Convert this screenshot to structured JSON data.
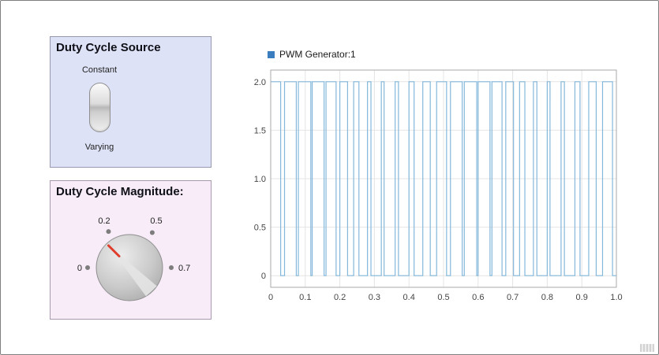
{
  "source_panel": {
    "title": "Duty Cycle Source",
    "switch": {
      "options": [
        "Constant",
        "Varying"
      ],
      "selected": "Varying"
    }
  },
  "magnitude_panel": {
    "title": "Duty Cycle Magnitude:",
    "knob": {
      "labels": [
        "0",
        "0.2",
        "0.5",
        "0.7"
      ],
      "pointer_angle_deg": 128
    }
  },
  "chart_data": {
    "type": "line",
    "title": "",
    "legend": [
      {
        "label": "PWM Generator:1",
        "color": "#3a7ebf"
      }
    ],
    "series_color": "#84b8db",
    "grid": true,
    "xlim": [
      0,
      1
    ],
    "ylim": [
      -0.12,
      2.12
    ],
    "x_tick_values": [
      0,
      0.1,
      0.2,
      0.3,
      0.4,
      0.5,
      0.6,
      0.7,
      0.8,
      0.9,
      1.0
    ],
    "x_tick_labels": [
      "0",
      "0.1",
      "0.2",
      "0.3",
      "0.4",
      "0.5",
      "0.6",
      "0.7",
      "0.8",
      "0.9",
      "1.0"
    ],
    "y_tick_values": [
      0,
      0.5,
      1.0,
      1.5,
      2.0
    ],
    "y_tick_labels": [
      "0",
      "0.5",
      "1.0",
      "1.5",
      "2.0"
    ],
    "signal": {
      "kind": "pwm",
      "amplitude": 2,
      "low": 0,
      "period": 0.04,
      "duty_cycles": [
        0.72,
        0.85,
        0.9,
        0.86,
        0.73,
        0.56,
        0.38,
        0.25,
        0.2,
        0.24,
        0.37,
        0.54,
        0.72,
        0.85,
        0.9,
        0.86,
        0.73,
        0.56,
        0.38,
        0.25,
        0.2,
        0.24,
        0.37,
        0.54,
        0.72
      ]
    }
  }
}
